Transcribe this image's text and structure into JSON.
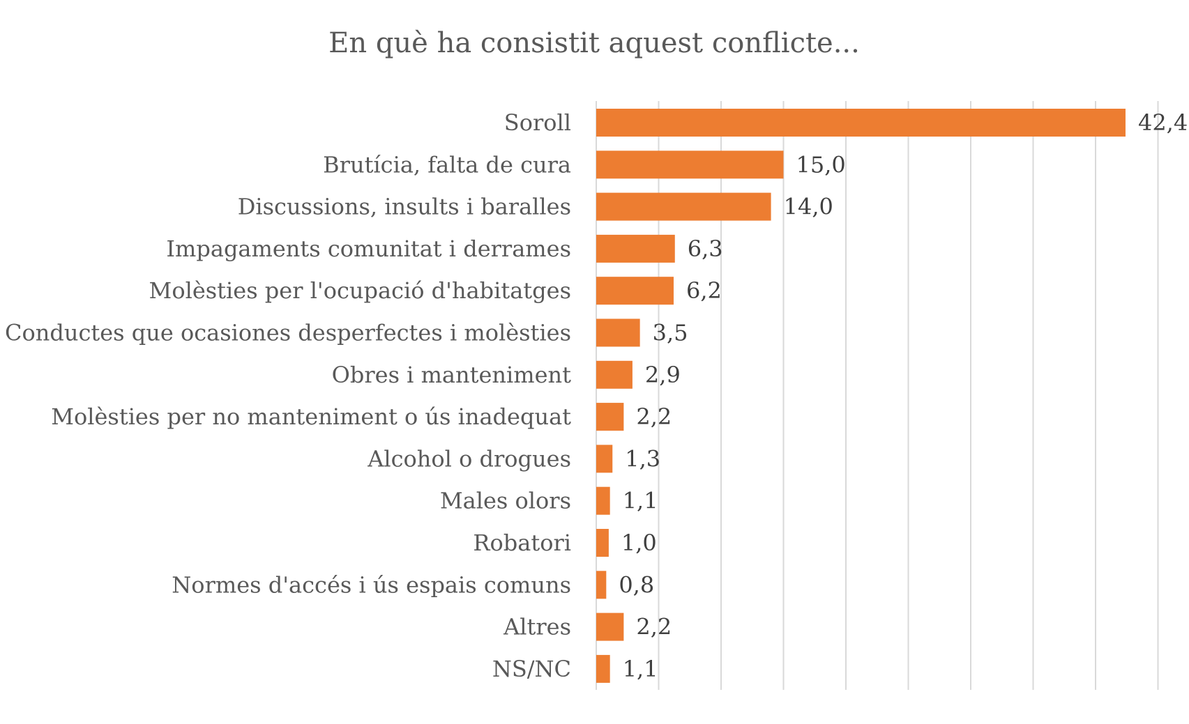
{
  "chart_data": {
    "type": "bar",
    "orientation": "horizontal",
    "title": "En què ha consistit aquest conflicte...",
    "xlabel": "",
    "ylabel": "",
    "categories": [
      "Soroll",
      "Brutícia, falta de cura",
      "Discussions, insults i baralles",
      "Impagaments comunitat i derrames",
      "Molèsties per l'ocupació d'habitatges",
      "Conductes que ocasiones desperfectes i molèsties",
      "Obres i manteniment",
      "Molèsties per no manteniment o ús inadequat",
      "Alcohol o drogues",
      "Males olors",
      "Robatori",
      "Normes d'accés i ús espais comuns",
      "Altres",
      "NS/NC"
    ],
    "values": [
      42.4,
      15.0,
      14.0,
      6.3,
      6.2,
      3.5,
      2.9,
      2.2,
      1.3,
      1.1,
      1.0,
      0.8,
      2.2,
      1.1
    ],
    "value_labels": [
      "42,4",
      "15,0",
      "14,0",
      "6,3",
      "6,2",
      "3,5",
      "2,9",
      "2,2",
      "1,3",
      "1,1",
      "1,0",
      "0,8",
      "2,2",
      "1,1"
    ],
    "xlim": [
      0,
      45
    ],
    "grid_step": 5,
    "grid": true,
    "axis_tick_labels_visible": false,
    "legend": "none",
    "bar_color": "#ED7D31",
    "grid_color": "#D9D9D9",
    "text_color": "#595959"
  }
}
